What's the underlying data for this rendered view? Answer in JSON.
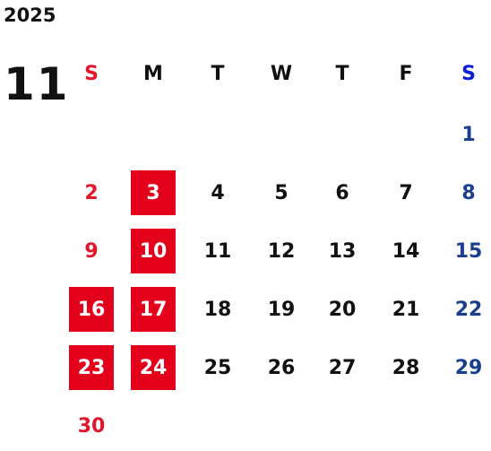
{
  "calendar": {
    "year": "2025",
    "month": "11",
    "weekdays": [
      "S",
      "M",
      "T",
      "W",
      "T",
      "F",
      "S"
    ],
    "weeks": [
      [
        "",
        "",
        "",
        "",
        "",
        "",
        "1"
      ],
      [
        "2",
        "3",
        "4",
        "5",
        "6",
        "7",
        "8"
      ],
      [
        "9",
        "10",
        "11",
        "12",
        "13",
        "14",
        "15"
      ],
      [
        "16",
        "17",
        "18",
        "19",
        "20",
        "21",
        "22"
      ],
      [
        "23",
        "24",
        "25",
        "26",
        "27",
        "28",
        "29"
      ],
      [
        "30",
        "",
        "",
        "",
        "",
        "",
        ""
      ]
    ],
    "highlighted_days": [
      "3",
      "10",
      "16",
      "17",
      "23",
      "24"
    ]
  },
  "colors": {
    "sunday": "#e0162b",
    "saturday": "#1a3f8f",
    "saturday_header": "#0a1fd8",
    "highlight_bg": "#e3001b",
    "text": "#111111"
  }
}
